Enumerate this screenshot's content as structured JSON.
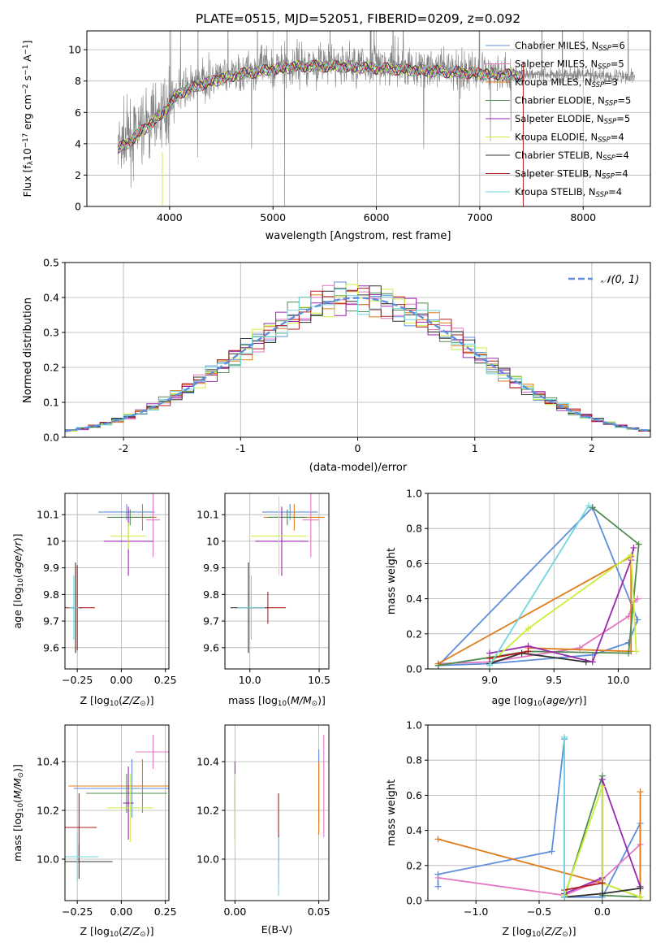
{
  "figure_title": "PLATE=0515, MJD=52051, FIBERID=0209, z=0.092",
  "colors": {
    "ch_miles": "#5f8fdc",
    "sa_miles": "#e377c2",
    "kr_miles": "#e07b1a",
    "ch_elodie": "#4f8c4f",
    "sa_elodie": "#9a27b0",
    "kr_elodie": "#c9ef3a",
    "ch_stelib": "#333333",
    "sa_stelib": "#b01e1e",
    "kr_stelib": "#6fd7e0",
    "data": "#808080",
    "normal": "#5f8fdc"
  },
  "chart_data": [
    {
      "id": "spectrum",
      "type": "line",
      "xlabel": "wavelength [Angstrom, rest frame]",
      "ylabel": "Flux [f",
      "ylabel_parts": [
        "Flux [f",
        "λ",
        "10",
        "−17",
        " erg cm",
        "−2",
        " s",
        "−1",
        " A",
        "−1",
        "]"
      ],
      "xlim": [
        3200,
        8650
      ],
      "ylim": [
        0,
        11.2
      ],
      "xticks": [
        4000,
        5000,
        6000,
        7000,
        8000
      ],
      "yticks": [
        0,
        2,
        4,
        6,
        8,
        10
      ],
      "legend_position": "upper-right",
      "legend": [
        {
          "name": "Chabrier MILES, N",
          "sub": "SSP",
          "tail": "=6",
          "color_key": "ch_miles"
        },
        {
          "name": "Salpeter MILES, N",
          "sub": "SSP",
          "tail": "=5",
          "color_key": "sa_miles"
        },
        {
          "name": "Kroupa MILES, N",
          "sub": "SSP",
          "tail": "=3",
          "color_key": "kr_miles"
        },
        {
          "name": "Chabrier ELODIE, N",
          "sub": "SSP",
          "tail": "=5",
          "color_key": "ch_elodie"
        },
        {
          "name": "Salpeter ELODIE, N",
          "sub": "SSP",
          "tail": "=5",
          "color_key": "sa_elodie"
        },
        {
          "name": "Kroupa ELODIE, N",
          "sub": "SSP",
          "tail": "=4",
          "color_key": "kr_elodie"
        },
        {
          "name": "Chabrier STELIB, N",
          "sub": "SSP",
          "tail": "=4",
          "color_key": "ch_stelib"
        },
        {
          "name": "Salpeter STELIB, N",
          "sub": "SSP",
          "tail": "=4",
          "color_key": "sa_stelib"
        },
        {
          "name": "Kroupa STELIB, N",
          "sub": "SSP",
          "tail": "=4",
          "color_key": "kr_stelib"
        }
      ],
      "continuum": [
        [
          3500,
          3.8
        ],
        [
          3600,
          4.2
        ],
        [
          3700,
          4.8
        ],
        [
          3800,
          5.3
        ],
        [
          3900,
          5.9
        ],
        [
          4000,
          6.6
        ],
        [
          4100,
          7.4
        ],
        [
          4300,
          7.9
        ],
        [
          4500,
          8.3
        ],
        [
          4700,
          8.6
        ],
        [
          5000,
          8.9
        ],
        [
          5300,
          9.1
        ],
        [
          5600,
          9.1
        ],
        [
          5900,
          9.0
        ],
        [
          6200,
          8.9
        ],
        [
          6500,
          8.8
        ],
        [
          6800,
          8.7
        ],
        [
          7100,
          8.6
        ],
        [
          7400,
          8.5
        ],
        [
          7700,
          8.4
        ],
        [
          8000,
          8.4
        ],
        [
          8300,
          8.3
        ],
        [
          8500,
          8.3
        ]
      ],
      "model_range": [
        3500,
        7420
      ],
      "data_range": [
        3500,
        8500
      ]
    },
    {
      "id": "residuals",
      "type": "bar",
      "xlabel": "(data-model)/error",
      "ylabel": "Normed distribution",
      "xlim": [
        -2.5,
        2.5
      ],
      "ylim": [
        0,
        0.5
      ],
      "xticks": [
        -2,
        -1,
        0,
        1,
        2
      ],
      "yticks": [
        0.0,
        0.1,
        0.2,
        0.3,
        0.4,
        0.5
      ],
      "legend_label": "𝒩(0, 1)",
      "legend_position": "upper-right",
      "bin_width": 0.1,
      "bin_start": -2.5
    },
    {
      "id": "z_vs_age",
      "type": "scatter",
      "xlabel": "Z [log",
      "xlabel_parts": [
        "Z [log",
        "10",
        "(",
        "Z/Z",
        "⊙",
        ")]"
      ],
      "ylabel_parts": [
        "age  [log",
        "10",
        "(",
        "age/yr",
        ")]"
      ],
      "xlim": [
        -0.32,
        0.27
      ],
      "ylim": [
        9.52,
        10.18
      ],
      "xticks": [
        -0.25,
        0.0,
        0.25
      ],
      "xticklabels": [
        "−0.25",
        "0.00",
        "0.25"
      ],
      "yticks": [
        9.6,
        9.7,
        9.8,
        9.9,
        10.0,
        10.1
      ],
      "points": [
        {
          "k": "ch_miles",
          "x": 0.03,
          "xe": 0.16,
          "y": 10.11,
          "ye": 0.03
        },
        {
          "k": "sa_miles",
          "x": 0.18,
          "xe": 0.04,
          "y": 10.08,
          "ye": 0.14
        },
        {
          "k": "kr_miles",
          "x": 0.12,
          "xe": 0.08,
          "y": 10.09,
          "ye": 0.05
        },
        {
          "k": "ch_elodie",
          "x": 0.05,
          "xe": 0.13,
          "y": 10.09,
          "ye": 0.03
        },
        {
          "k": "sa_elodie",
          "x": 0.04,
          "xe": 0.14,
          "y": 10.0,
          "ye": 0.13
        },
        {
          "k": "kr_elodie",
          "x": 0.04,
          "xe": 0.1,
          "y": 10.02,
          "ye": 0.05
        },
        {
          "k": "ch_stelib",
          "x": -0.26,
          "xe": 0.04,
          "y": 9.75,
          "ye": 0.17
        },
        {
          "k": "sa_stelib",
          "x": -0.25,
          "xe": 0.1,
          "y": 9.75,
          "ye": 0.16
        },
        {
          "k": "kr_stelib",
          "x": -0.27,
          "xe": 0.03,
          "y": 9.75,
          "ye": 0.12
        }
      ]
    },
    {
      "id": "mass_vs_age",
      "type": "scatter",
      "xlabel_parts": [
        "mass [log",
        "10",
        "(",
        "M/M",
        "⊙",
        ")]"
      ],
      "xlim": [
        9.82,
        10.57
      ],
      "ylim": [
        9.52,
        10.18
      ],
      "xticks": [
        10.0,
        10.5
      ],
      "xticklabels": [
        "10.0",
        "10.5"
      ],
      "yticks": [
        9.6,
        9.7,
        9.8,
        9.9,
        10.0,
        10.1
      ],
      "points": [
        {
          "k": "ch_miles",
          "x": 10.29,
          "xe": 0.2,
          "y": 10.11,
          "ye": 0.03
        },
        {
          "k": "sa_miles",
          "x": 10.44,
          "xe": 0.06,
          "y": 10.08,
          "ye": 0.14
        },
        {
          "k": "kr_miles",
          "x": 10.32,
          "xe": 0.22,
          "y": 10.09,
          "ye": 0.05
        },
        {
          "k": "ch_elodie",
          "x": 10.27,
          "xe": 0.14,
          "y": 10.09,
          "ye": 0.03
        },
        {
          "k": "sa_elodie",
          "x": 10.23,
          "xe": 0.19,
          "y": 10.0,
          "ye": 0.13
        },
        {
          "k": "kr_elodie",
          "x": 10.21,
          "xe": 0.2,
          "y": 10.02,
          "ye": 0.15
        },
        {
          "k": "ch_stelib",
          "x": 9.99,
          "xe": 0.13,
          "y": 9.75,
          "ye": 0.17
        },
        {
          "k": "sa_stelib",
          "x": 10.13,
          "xe": 0.13,
          "y": 9.75,
          "ye": 0.06
        },
        {
          "k": "kr_stelib",
          "x": 10.01,
          "xe": 0.1,
          "y": 9.75,
          "ye": 0.12
        }
      ]
    },
    {
      "id": "age_vs_weight",
      "type": "line",
      "xlabel_parts": [
        "age  [log",
        "10",
        "(",
        "age/yr",
        ")]"
      ],
      "ylabel": "mass weight",
      "xlim": [
        8.52,
        10.25
      ],
      "ylim": [
        0,
        1.0
      ],
      "xticks": [
        9.0,
        9.5,
        10.0
      ],
      "xticklabels": [
        "9.0",
        "9.5",
        "10.0"
      ],
      "yticks": [
        0.0,
        0.2,
        0.4,
        0.6,
        0.8,
        1.0
      ],
      "series": [
        {
          "k": "ch_miles",
          "pts": [
            [
              8.6,
              0.02
            ],
            [
              9.0,
              0.03
            ],
            [
              9.8,
              0.08
            ],
            [
              10.08,
              0.15
            ],
            [
              10.15,
              0.28
            ],
            [
              9.8,
              0.92
            ],
            [
              8.6,
              0.02
            ]
          ]
        },
        {
          "k": "sa_miles",
          "pts": [
            [
              8.6,
              0.03
            ],
            [
              9.0,
              0.04
            ],
            [
              9.7,
              0.12
            ],
            [
              10.08,
              0.3
            ],
            [
              10.12,
              0.38
            ],
            [
              10.15,
              0.4
            ]
          ]
        },
        {
          "k": "kr_miles",
          "pts": [
            [
              8.6,
              0.03
            ],
            [
              10.1,
              0.64
            ],
            [
              10.1,
              0.1
            ],
            [
              9.3,
              0.12
            ]
          ]
        },
        {
          "k": "ch_elodie",
          "pts": [
            [
              8.6,
              0.02
            ],
            [
              9.3,
              0.1
            ],
            [
              10.08,
              0.09
            ],
            [
              10.16,
              0.71
            ],
            [
              9.8,
              0.92
            ]
          ]
        },
        {
          "k": "sa_elodie",
          "pts": [
            [
              9.0,
              0.09
            ],
            [
              9.3,
              0.13
            ],
            [
              9.8,
              0.04
            ],
            [
              10.1,
              0.62
            ],
            [
              10.12,
              0.69
            ]
          ]
        },
        {
          "k": "kr_elodie",
          "pts": [
            [
              9.0,
              0.03
            ],
            [
              9.3,
              0.23
            ],
            [
              10.1,
              0.65
            ],
            [
              10.14,
              0.1
            ]
          ]
        },
        {
          "k": "ch_stelib",
          "pts": [
            [
              9.0,
              0.03
            ],
            [
              9.25,
              0.09
            ],
            [
              9.75,
              0.04
            ]
          ]
        },
        {
          "k": "sa_stelib",
          "pts": [
            [
              9.0,
              0.06
            ],
            [
              9.3,
              0.1
            ]
          ]
        },
        {
          "k": "kr_stelib",
          "pts": [
            [
              9.0,
              0.02
            ],
            [
              9.77,
              0.93
            ]
          ]
        }
      ]
    },
    {
      "id": "z_vs_mass",
      "type": "scatter",
      "xlabel_parts": [
        "Z [log",
        "10",
        "(",
        "Z/Z",
        "⊙",
        ")]"
      ],
      "ylabel_parts": [
        "mass [log",
        "10",
        "(",
        "M/M",
        "⊙",
        ")]"
      ],
      "xlim": [
        -0.32,
        0.27
      ],
      "ylim": [
        9.83,
        10.55
      ],
      "xticks": [
        -0.25,
        0.0,
        0.25
      ],
      "xticklabels": [
        "−0.25",
        "0.00",
        "0.25"
      ],
      "yticks": [
        10.0,
        10.2,
        10.4
      ],
      "yticklabels": [
        "10.0",
        "10.2",
        "10.4"
      ],
      "points": [
        {
          "k": "ch_miles",
          "x": 0.06,
          "xe": 0.33,
          "y": 10.29,
          "ye": 0.12
        },
        {
          "k": "sa_miles",
          "x": 0.18,
          "xe": 0.1,
          "y": 10.44,
          "ye": 0.07
        },
        {
          "k": "kr_miles",
          "x": 0.12,
          "xe": 0.42,
          "y": 10.3,
          "ye": 0.11
        },
        {
          "k": "ch_elodie",
          "x": 0.03,
          "xe": 0.23,
          "y": 10.27,
          "ye": 0.08
        },
        {
          "k": "sa_elodie",
          "x": 0.04,
          "xe": 0.03,
          "y": 10.23,
          "ye": 0.15
        },
        {
          "k": "kr_elodie",
          "x": 0.05,
          "xe": 0.13,
          "y": 10.21,
          "ye": 0.14
        },
        {
          "k": "ch_stelib",
          "x": -0.24,
          "xe": 0.19,
          "y": 9.99,
          "ye": 0.07
        },
        {
          "k": "sa_stelib",
          "x": -0.24,
          "xe": 0.1,
          "y": 10.13,
          "ye": 0.14
        },
        {
          "k": "kr_stelib",
          "x": -0.25,
          "xe": 0.12,
          "y": 10.01,
          "ye": 0.1
        }
      ]
    },
    {
      "id": "ebv_vs_mass",
      "type": "scatter",
      "xlabel": "E(B-V)",
      "xlim": [
        -0.006,
        0.056
      ],
      "ylim": [
        9.83,
        10.55
      ],
      "xticks": [
        0.0,
        0.05
      ],
      "xticklabels": [
        "0.00",
        "0.05"
      ],
      "yticks": [
        10.0,
        10.2,
        10.4
      ],
      "yticklabels": [
        "10.0",
        "10.2",
        "10.4"
      ],
      "points": [
        {
          "k": "ch_miles",
          "x": 0.05,
          "y": 10.3,
          "ye": 0.15
        },
        {
          "k": "sa_miles",
          "x": 0.053,
          "y": 10.3,
          "ye": 0.21
        },
        {
          "k": "kr_miles",
          "x": 0.05,
          "y": 10.25,
          "ye": 0.15
        },
        {
          "k": "ch_elodie",
          "x": 0.0,
          "y": 10.2,
          "ye": 0.12
        },
        {
          "k": "sa_elodie",
          "x": 0.0,
          "y": 10.3,
          "ye": 0.1
        },
        {
          "k": "kr_elodie",
          "x": 0.0,
          "y": 10.2,
          "ye": 0.15
        },
        {
          "k": "ch_stelib",
          "x": 0.026,
          "y": 10.0,
          "ye": 0.1
        },
        {
          "k": "sa_stelib",
          "x": 0.026,
          "y": 10.13,
          "ye": 0.14
        },
        {
          "k": "kr_stelib",
          "x": 0.026,
          "y": 9.97,
          "ye": 0.12
        }
      ]
    },
    {
      "id": "z_vs_weight",
      "type": "line",
      "xlabel_parts": [
        "Z [log",
        "10",
        "(",
        "Z/Z",
        "⊙",
        ")]"
      ],
      "ylabel": "mass weight",
      "xlim": [
        -1.38,
        0.38
      ],
      "ylim": [
        0,
        1.0
      ],
      "xticks": [
        -1.0,
        -0.5,
        0.0
      ],
      "xticklabels": [
        "−1.0",
        "−0.5",
        "0.0"
      ],
      "yticks": [
        0.0,
        0.2,
        0.4,
        0.6,
        0.8,
        1.0
      ],
      "series": [
        {
          "k": "ch_miles",
          "pts": [
            [
              -1.3,
              0.08
            ],
            [
              -1.3,
              0.15
            ],
            [
              -0.4,
              0.28
            ],
            [
              -0.3,
              0.92
            ],
            [
              -0.3,
              0.02
            ],
            [
              0.0,
              0.02
            ],
            [
              0.3,
              0.44
            ],
            [
              0.3,
              0.02
            ]
          ]
        },
        {
          "k": "sa_miles",
          "pts": [
            [
              -1.3,
              0.13
            ],
            [
              -0.3,
              0.03
            ],
            [
              0.0,
              0.12
            ],
            [
              0.3,
              0.32
            ],
            [
              0.3,
              0.02
            ]
          ]
        },
        {
          "k": "kr_miles",
          "pts": [
            [
              -1.3,
              0.35
            ],
            [
              0.0,
              0.1
            ],
            [
              0.3,
              0.02
            ],
            [
              0.3,
              0.62
            ]
          ]
        },
        {
          "k": "ch_elodie",
          "pts": [
            [
              -0.3,
              0.02
            ],
            [
              0.0,
              0.71
            ],
            [
              0.0,
              0.03
            ],
            [
              0.3,
              0.02
            ]
          ]
        },
        {
          "k": "sa_elodie",
          "pts": [
            [
              -0.3,
              0.04
            ],
            [
              0.0,
              0.13
            ],
            [
              0.0,
              0.69
            ],
            [
              0.3,
              0.08
            ]
          ]
        },
        {
          "k": "kr_elodie",
          "pts": [
            [
              -0.3,
              0.03
            ],
            [
              0.0,
              0.65
            ],
            [
              0.0,
              0.1
            ],
            [
              0.3,
              0.02
            ]
          ]
        },
        {
          "k": "ch_stelib",
          "pts": [
            [
              -0.3,
              0.02
            ],
            [
              0.0,
              0.04
            ],
            [
              0.3,
              0.07
            ]
          ]
        },
        {
          "k": "sa_stelib",
          "pts": [
            [
              -0.3,
              0.06
            ],
            [
              0.0,
              0.1
            ]
          ]
        },
        {
          "k": "kr_stelib",
          "pts": [
            [
              -0.3,
              0.02
            ],
            [
              -0.3,
              0.93
            ]
          ]
        }
      ]
    }
  ]
}
